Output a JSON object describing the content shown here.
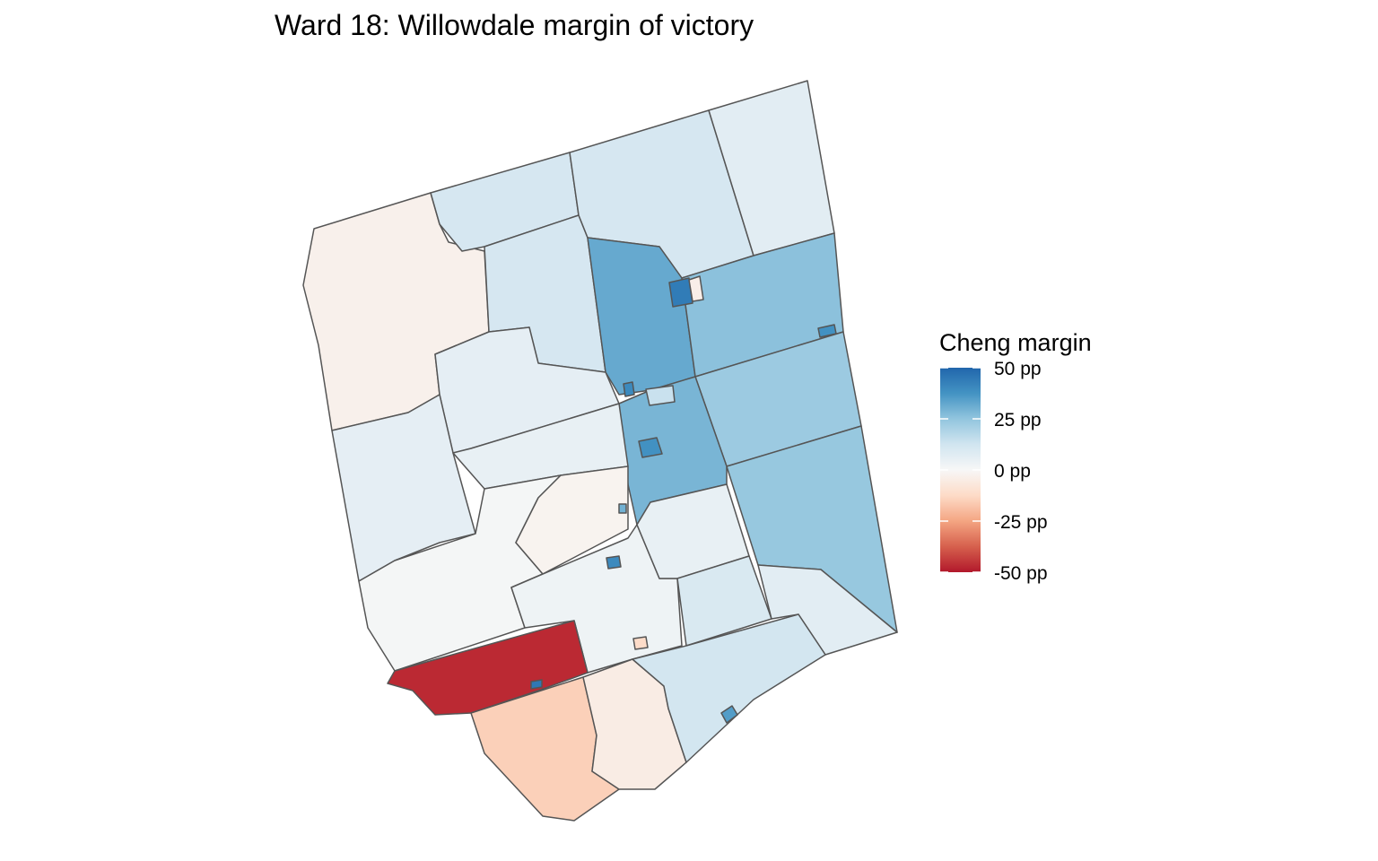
{
  "title": "Ward 18: Willowdale margin of victory",
  "legend": {
    "title": "Cheng margin",
    "ticks": [
      {
        "value": 50,
        "label": "50 pp"
      },
      {
        "value": 25,
        "label": "25 pp"
      },
      {
        "value": 0,
        "label": "0 pp"
      },
      {
        "value": -25,
        "label": "-25 pp"
      },
      {
        "value": -50,
        "label": "-50 pp"
      }
    ],
    "range": [
      -50,
      50
    ],
    "colors": {
      "-50": "#b2182b",
      "-37.5": "#d6604d",
      "-25": "#f4a582",
      "-12.5": "#fddbc7",
      "0": "#f7f7f7",
      "12.5": "#d1e5f0",
      "25": "#92c5de",
      "37.5": "#4393c3",
      "50": "#2166ac"
    }
  },
  "border_color": "#555555",
  "regions": [
    {
      "margin": -3
    },
    {
      "margin": 11
    },
    {
      "margin": 11
    },
    {
      "margin": 11
    },
    {
      "margin": 7
    },
    {
      "margin": 32
    },
    {
      "margin": 26
    },
    {
      "margin": 23
    },
    {
      "margin": 24
    },
    {
      "margin": 29
    },
    {
      "margin": 6
    },
    {
      "margin": 6
    },
    {
      "margin": 5
    },
    {
      "margin": 1
    },
    {
      "margin": -2
    },
    {
      "margin": 3
    },
    {
      "margin": 5
    },
    {
      "margin": 10
    },
    {
      "margin": 7
    },
    {
      "margin": -47
    },
    {
      "margin": -15
    },
    {
      "margin": -5
    },
    {
      "margin": 12
    },
    {
      "margin": 44
    },
    {
      "margin": -4
    },
    {
      "margin": 38
    },
    {
      "margin": 38
    },
    {
      "margin": 40
    },
    {
      "margin": 40
    },
    {
      "margin": 30
    },
    {
      "margin": 45
    },
    {
      "margin": -12
    },
    {
      "margin": 14
    },
    {
      "margin": 35
    }
  ]
}
